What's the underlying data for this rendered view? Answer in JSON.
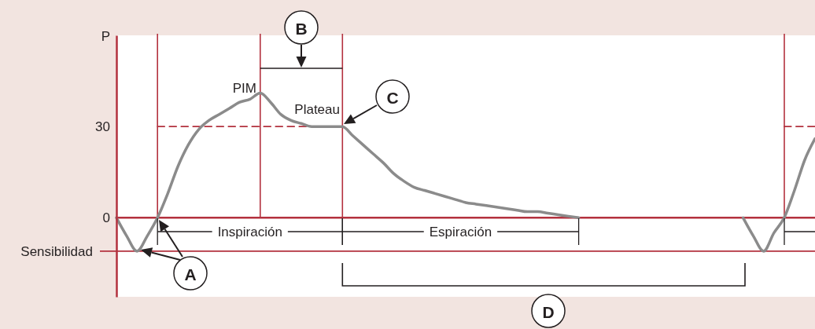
{
  "chart_data": {
    "type": "line",
    "ylabel": "P",
    "categories": [
      null,
      null,
      null,
      null,
      null,
      null,
      null,
      null,
      null,
      null,
      null,
      null,
      null,
      null,
      null,
      null,
      null,
      null,
      null,
      null,
      null,
      null,
      null,
      null,
      null,
      null,
      null,
      null,
      null,
      null,
      null,
      null,
      null,
      null,
      null,
      null,
      null,
      null,
      null,
      null,
      null,
      null,
      null,
      null,
      null,
      null,
      null,
      null,
      null,
      null,
      null,
      null,
      null,
      null,
      null,
      null,
      null,
      null,
      null,
      null,
      null,
      null,
      null,
      null,
      null,
      null,
      null,
      null,
      null
    ],
    "series": [
      {
        "color": "#8b8b8b",
        "values": [
          0,
          -6,
          -11,
          -6,
          0,
          8,
          17,
          24,
          29,
          32,
          34,
          36,
          38,
          39,
          41,
          38,
          34,
          32,
          31,
          30,
          30,
          30,
          30,
          27,
          24,
          21,
          18,
          14.5,
          12,
          10,
          9,
          8,
          7,
          6,
          5,
          4.5,
          4,
          3.5,
          3,
          2.5,
          2,
          2,
          1.5,
          1,
          0.5,
          0,
          null,
          null,
          null,
          null,
          null,
          null,
          null,
          null,
          null,
          null,
          null,
          null,
          null,
          null,
          null,
          null,
          null,
          null,
          null,
          null,
          null,
          null,
          null
        ]
      },
      {
        "color": "#8b8b8b",
        "values": [
          null,
          null,
          null,
          null,
          null,
          null,
          null,
          null,
          null,
          null,
          null,
          null,
          null,
          null,
          null,
          null,
          null,
          null,
          null,
          null,
          null,
          null,
          null,
          null,
          null,
          null,
          null,
          null,
          null,
          null,
          null,
          null,
          null,
          null,
          null,
          null,
          null,
          null,
          null,
          null,
          null,
          null,
          null,
          null,
          null,
          null,
          null,
          null,
          null,
          null,
          null,
          null,
          null,
          null,
          null,
          null,
          null,
          null,
          null,
          null,
          null,
          0,
          -6,
          -11,
          -5,
          0,
          9,
          19,
          26
        ]
      },
      {
        "color": "#b3313e",
        "line_style": "dashed",
        "values": [
          null,
          null,
          null,
          null,
          30,
          30,
          30,
          30,
          30,
          30,
          30,
          30,
          30,
          30,
          30,
          30,
          30,
          30,
          30,
          30,
          30,
          30,
          30,
          null,
          null,
          null,
          null,
          null,
          null,
          null,
          null,
          null,
          null,
          null,
          null,
          null,
          null,
          null,
          null,
          null,
          null,
          null,
          null,
          null,
          null,
          null,
          null,
          null,
          null,
          null,
          null,
          null,
          null,
          null,
          null,
          null,
          null,
          null,
          null,
          null,
          null,
          null,
          null,
          null,
          null,
          null,
          null,
          null,
          null
        ]
      },
      {
        "color": "#b3313e",
        "line_style": "dashed",
        "values": [
          null,
          null,
          null,
          null,
          null,
          null,
          null,
          null,
          null,
          null,
          null,
          null,
          null,
          null,
          null,
          null,
          null,
          null,
          null,
          null,
          null,
          null,
          null,
          null,
          null,
          null,
          null,
          null,
          null,
          null,
          null,
          null,
          null,
          null,
          null,
          null,
          null,
          null,
          null,
          null,
          null,
          null,
          null,
          null,
          null,
          null,
          null,
          null,
          null,
          null,
          null,
          null,
          null,
          null,
          null,
          null,
          null,
          null,
          null,
          null,
          null,
          null,
          null,
          null,
          null,
          30,
          30,
          30,
          30
        ]
      }
    ],
    "ylim": [
      -26,
      60
    ],
    "yticks": [
      0,
      30
    ],
    "tick_labels": "y",
    "ref_lines": [
      {
        "axis": "y",
        "value": 0,
        "color": "#b3313e"
      },
      {
        "axis": "y",
        "value": -11,
        "label": "Sensibilidad",
        "color": "#b3313e"
      }
    ],
    "annotations": [
      "PIM",
      "Plateau",
      "Inspiración",
      "Espiración",
      "A",
      "B",
      "C",
      "D"
    ]
  }
}
